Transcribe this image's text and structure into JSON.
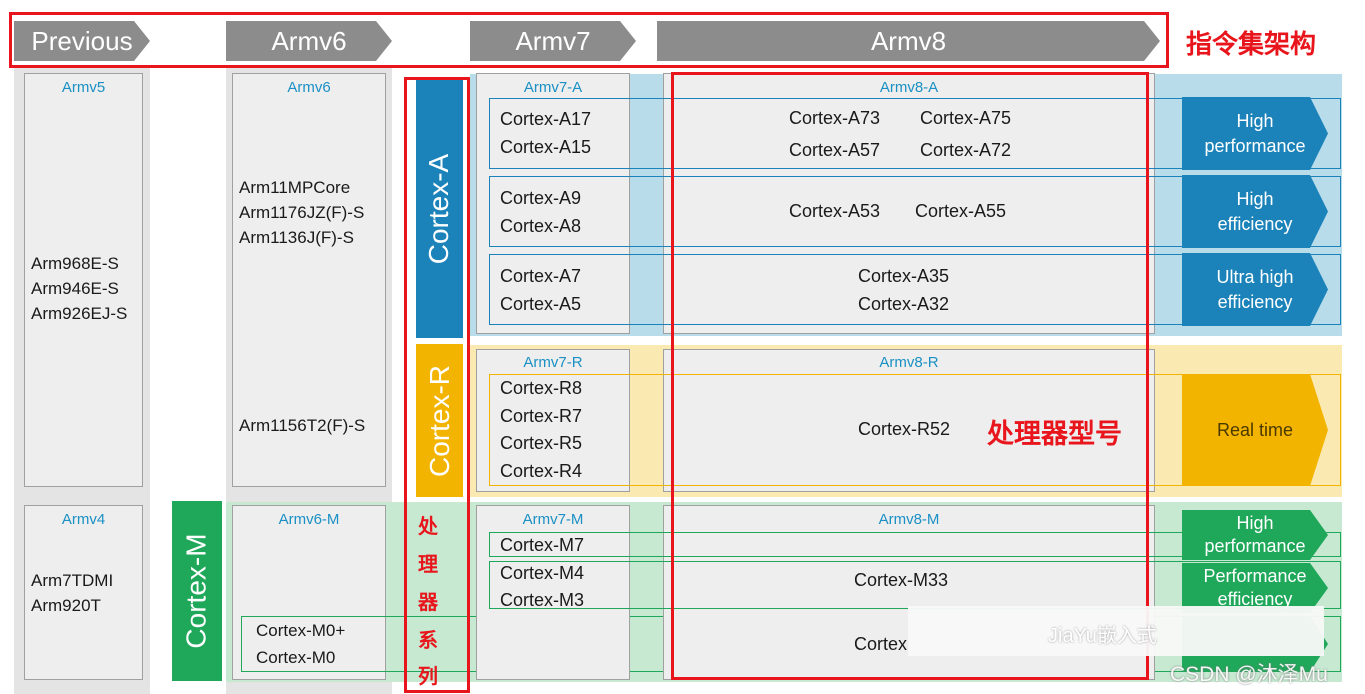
{
  "header": {
    "previous": "Previous",
    "armv6": "Armv6",
    "armv7": "Armv7",
    "armv8": "Armv8",
    "isa_label": "指令集架构"
  },
  "previous_col": {
    "armv5_title": "Armv5",
    "armv5_cores": [
      "Arm968E-S",
      "Arm946E-S",
      "Arm926EJ-S"
    ],
    "armv4_title": "Armv4",
    "armv4_cores": [
      "Arm7TDMI",
      "Arm920T"
    ]
  },
  "armv6_col": {
    "title": "Armv6",
    "cores_a": [
      "Arm11MPCore",
      "Arm1176JZ(F)-S",
      "Arm1136J(F)-S"
    ],
    "core_r": "Arm1156T2(F)-S",
    "m_title": "Armv6-M",
    "m_cores": [
      "Cortex-M0+",
      "Cortex-M0"
    ]
  },
  "families": {
    "a": "Cortex-A",
    "r": "Cortex-R",
    "m": "Cortex-M",
    "series_label": [
      "处",
      "理",
      "器",
      "系",
      "列"
    ]
  },
  "armv7_col": {
    "a_title": "Armv7-A",
    "a_group1": [
      "Cortex-A17",
      "Cortex-A15"
    ],
    "a_group2": [
      "Cortex-A9",
      "Cortex-A8"
    ],
    "a_group3": [
      "Cortex-A7",
      "Cortex-A5"
    ],
    "r_title": "Armv7-R",
    "r_cores": [
      "Cortex-R8",
      "Cortex-R7",
      "Cortex-R5",
      "Cortex-R4"
    ],
    "m_title": "Armv7-M",
    "m_group1": "Cortex-M7",
    "m_group2": [
      "Cortex-M4",
      "Cortex-M3"
    ]
  },
  "armv8_col": {
    "a_title": "Armv8-A",
    "a_row1": [
      "Cortex-A73",
      "Cortex-A75"
    ],
    "a_row2": [
      "Cortex-A57",
      "Cortex-A72"
    ],
    "a_row3": [
      "Cortex-A53",
      "Cortex-A55"
    ],
    "a_row4": [
      "Cortex-A35",
      "Cortex-A32"
    ],
    "r_title": "Armv8-R",
    "r_core": "Cortex-R52",
    "model_label": "处理器型号",
    "m_title": "Armv8-M",
    "m_core1": "Cortex-M33",
    "m_core2": "Cortex"
  },
  "perf": {
    "a1": [
      "High",
      "performance"
    ],
    "a2": [
      "High",
      "efficiency"
    ],
    "a3": [
      "Ultra high",
      "efficiency"
    ],
    "r1": "Real time",
    "m1": [
      "High",
      "performance"
    ],
    "m2": [
      "Performance",
      "efficiency"
    ]
  },
  "watermark": {
    "jiayu": "JiaYu嵌入式",
    "csdn": "CSDN @沐泽Mu"
  },
  "colors": {
    "header_gray": "#8c8c8c",
    "cortex_a_blue": "#1b83b9",
    "cortex_r_yellow": "#f3b400",
    "cortex_m_green": "#1fa85a",
    "band_a": "#b9dcea",
    "band_r": "#fbe9b2",
    "band_m": "#c7e9d1",
    "red_annotation": "#e8161c",
    "arch_title_blue": "#1a90c4"
  }
}
